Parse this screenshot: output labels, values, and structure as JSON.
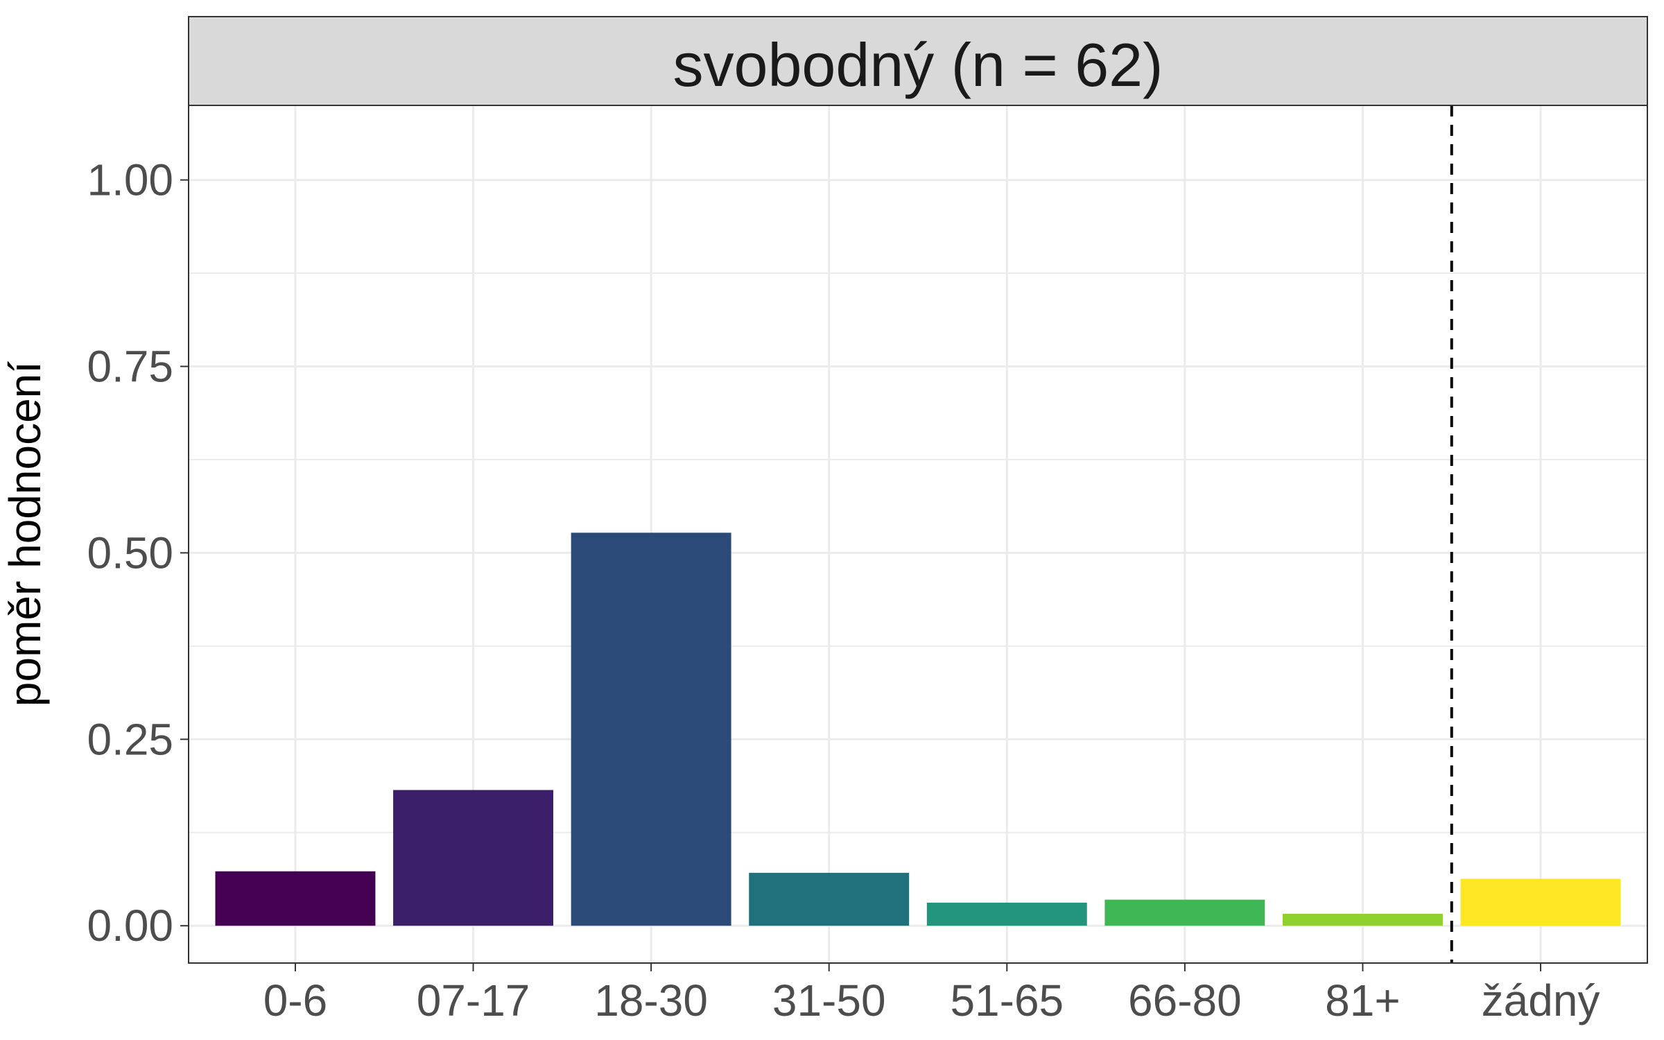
{
  "chart_data": {
    "type": "bar",
    "facet_label": "svobodný (n = 62)",
    "ylabel": "poměr hodnocení",
    "xlabel": "",
    "categories": [
      "0-6",
      "07-17",
      "18-30",
      "31-50",
      "51-65",
      "66-80",
      "81+",
      "žádný"
    ],
    "values": [
      0.073,
      0.182,
      0.527,
      0.071,
      0.031,
      0.035,
      0.016,
      0.063
    ],
    "colors": [
      "#440154",
      "#3b1f69",
      "#2c4a78",
      "#21717d",
      "#23957d",
      "#3eb754",
      "#8ed12c",
      "#fde725"
    ],
    "ylim": [
      -0.05,
      1.1
    ],
    "y_ticks": [
      "0.00",
      "0.25",
      "0.50",
      "0.75",
      "1.00"
    ],
    "y_tick_values": [
      0,
      0.25,
      0.5,
      0.75,
      1.0
    ],
    "reference_line": {
      "style": "dashed",
      "between": [
        "81+",
        "žádný"
      ]
    },
    "grid": true,
    "theme": "bw"
  }
}
